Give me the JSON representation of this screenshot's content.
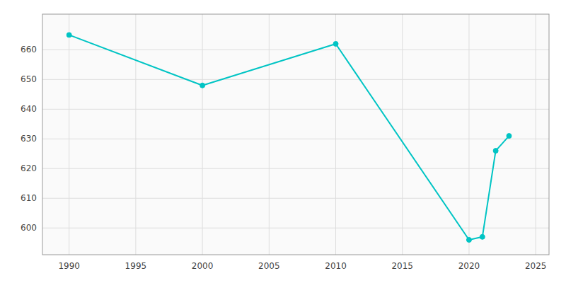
{
  "chart_data": {
    "type": "line",
    "x": [
      1990,
      2000,
      2010,
      2020,
      2021,
      2022,
      2023
    ],
    "values": [
      665,
      648,
      662,
      596,
      597,
      626,
      631
    ],
    "color": "#00C4C4",
    "marker": "circle",
    "xlim": [
      1988,
      2026
    ],
    "ylim": [
      591,
      672
    ],
    "xticks": [
      1990,
      1995,
      2000,
      2005,
      2010,
      2015,
      2020,
      2025
    ],
    "yticks": [
      600,
      610,
      620,
      630,
      640,
      650,
      660
    ],
    "grid": true
  }
}
